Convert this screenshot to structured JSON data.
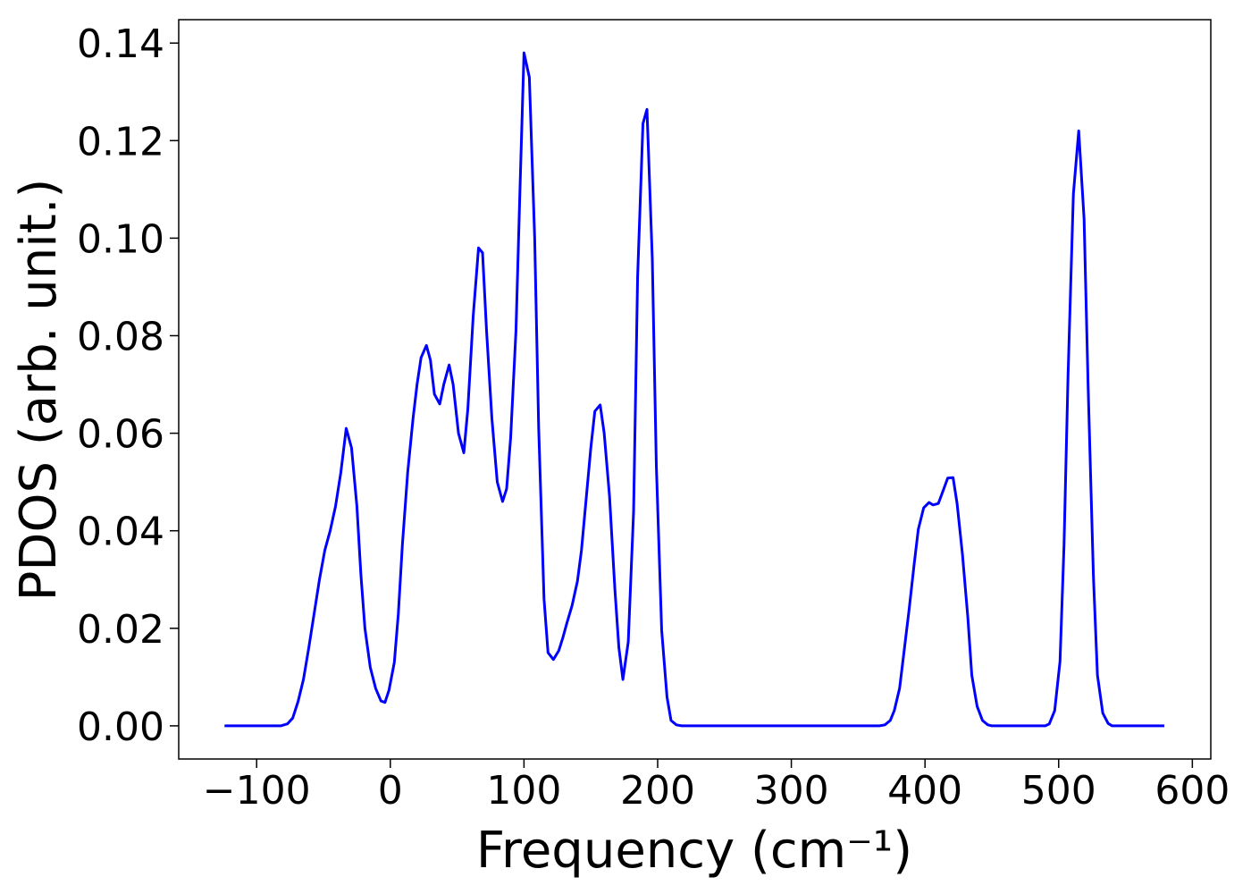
{
  "chart_data": {
    "type": "line",
    "xlabel": "Frequency (cm⁻¹)",
    "ylabel": "PDOS (arb. unit.)",
    "xlim": [
      -158.3,
      613.8
    ],
    "ylim": [
      -0.0068,
      0.1448
    ],
    "xticks": [
      {
        "value": -100,
        "label": "−100"
      },
      0,
      100,
      200,
      300,
      400,
      500,
      600
    ],
    "yticks": [
      {
        "value": 0,
        "label": "0.00"
      },
      {
        "value": 0.02,
        "label": "0.02"
      },
      {
        "value": 0.04,
        "label": "0.04"
      },
      {
        "value": 0.06,
        "label": "0.06"
      },
      {
        "value": 0.08,
        "label": "0.08"
      },
      {
        "value": 0.1,
        "label": "0.10"
      },
      {
        "value": 0.12,
        "label": "0.12"
      },
      {
        "value": 0.14,
        "label": "0.14"
      }
    ],
    "x": [
      -124,
      -82,
      -77,
      -73,
      -69,
      -65,
      -61,
      -57,
      -53,
      -49,
      -45,
      -41,
      -37,
      -33,
      -29,
      -25,
      -22,
      -19,
      -15,
      -11,
      -7,
      -4,
      -1,
      3,
      6,
      9,
      13,
      17,
      20,
      23,
      27,
      30,
      33,
      37,
      40,
      44,
      47,
      51,
      55,
      58,
      62,
      66,
      69,
      72,
      76,
      80,
      84,
      87,
      90,
      94,
      97,
      100,
      104,
      108,
      111,
      115,
      118,
      122,
      126,
      129,
      132,
      136,
      140,
      143,
      146,
      150,
      153,
      157,
      160,
      164,
      168,
      171,
      174,
      178,
      182,
      185,
      189,
      192,
      196,
      199,
      203,
      207,
      210,
      214,
      218,
      366,
      370,
      374,
      377,
      381,
      384,
      388,
      392,
      395,
      399,
      403,
      406,
      410,
      413,
      417,
      421,
      424,
      428,
      432,
      435,
      439,
      443,
      447,
      450,
      490,
      493,
      497,
      501,
      504,
      507,
      511,
      515,
      519,
      522,
      526,
      529,
      533,
      537,
      540,
      579
    ],
    "series": [
      {
        "name": "PDOS",
        "color": "#0000ff",
        "values": [
          0,
          0,
          0.0004,
          0.0016,
          0.005,
          0.0095,
          0.016,
          0.023,
          0.03,
          0.036,
          0.04,
          0.045,
          0.052,
          0.061,
          0.057,
          0.045,
          0.031,
          0.02,
          0.012,
          0.0077,
          0.0051,
          0.0048,
          0.0073,
          0.013,
          0.023,
          0.037,
          0.052,
          0.063,
          0.07,
          0.0755,
          0.078,
          0.075,
          0.068,
          0.066,
          0.07,
          0.074,
          0.07,
          0.06,
          0.056,
          0.065,
          0.084,
          0.098,
          0.097,
          0.081,
          0.063,
          0.05,
          0.046,
          0.0486,
          0.059,
          0.081,
          0.11,
          0.138,
          0.133,
          0.1,
          0.061,
          0.026,
          0.015,
          0.0136,
          0.0154,
          0.018,
          0.021,
          0.0247,
          0.0297,
          0.036,
          0.045,
          0.057,
          0.0645,
          0.0658,
          0.06,
          0.047,
          0.028,
          0.016,
          0.0095,
          0.0172,
          0.044,
          0.092,
          0.1235,
          0.1264,
          0.0957,
          0.0535,
          0.0196,
          0.0059,
          0.0011,
          0.0002,
          0,
          0,
          0.0002,
          0.0011,
          0.0031,
          0.0077,
          0.0145,
          0.0236,
          0.0334,
          0.0403,
          0.0447,
          0.0458,
          0.0453,
          0.0456,
          0.0478,
          0.0508,
          0.0509,
          0.0456,
          0.0352,
          0.0224,
          0.0104,
          0.004,
          0.0011,
          0.0002,
          0,
          0,
          0.0004,
          0.0031,
          0.0132,
          0.037,
          0.0718,
          0.109,
          0.122,
          0.104,
          0.07,
          0.0306,
          0.0104,
          0.0026,
          0.0005,
          0,
          0
        ]
      }
    ]
  }
}
